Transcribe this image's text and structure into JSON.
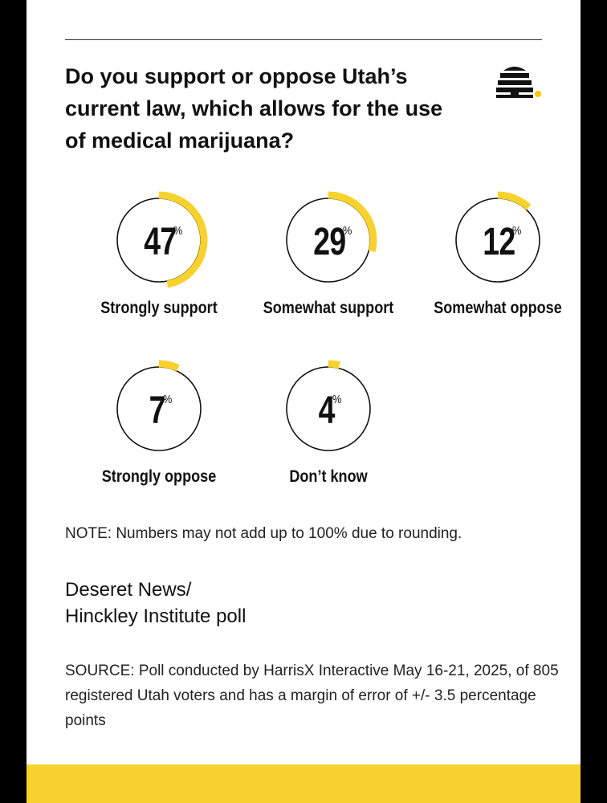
{
  "title": "Do you support or oppose Utah’s current law, which allows for the use of medical marijuana?",
  "logo": {
    "icon": "beehive-icon",
    "accent_color": "#f5c800"
  },
  "colors": {
    "accent": "#f8d22c",
    "ring": "#111111"
  },
  "chart_data": {
    "type": "donut",
    "title": "Do you support or oppose Utah’s current law, which allows for the use of medical marijuana?",
    "unit": "%",
    "categories": [
      "Strongly support",
      "Somewhat support",
      "Somewhat oppose",
      "Strongly oppose",
      "Don’t know"
    ],
    "values": [
      47,
      29,
      12,
      7,
      4
    ],
    "items": [
      {
        "label": "Strongly support",
        "value": 47,
        "display": "47"
      },
      {
        "label": "Somewhat support",
        "value": 29,
        "display": "29"
      },
      {
        "label": "Somewhat oppose",
        "value": 12,
        "display": "12"
      },
      {
        "label": "Strongly oppose",
        "value": 7,
        "display": "7"
      },
      {
        "label": "Don’t know",
        "value": 4,
        "display": "4"
      }
    ]
  },
  "note": "NOTE: Numbers may not add up to 100% due to rounding.",
  "brand": {
    "line1": "Deseret News/",
    "line2": "Hinckley Institute poll"
  },
  "source": "SOURCE: Poll conducted by HarrisX Interactive May 16-21, 2025, of 805 registered Utah voters and has a margin of error of +/- 3.5 percentage points"
}
